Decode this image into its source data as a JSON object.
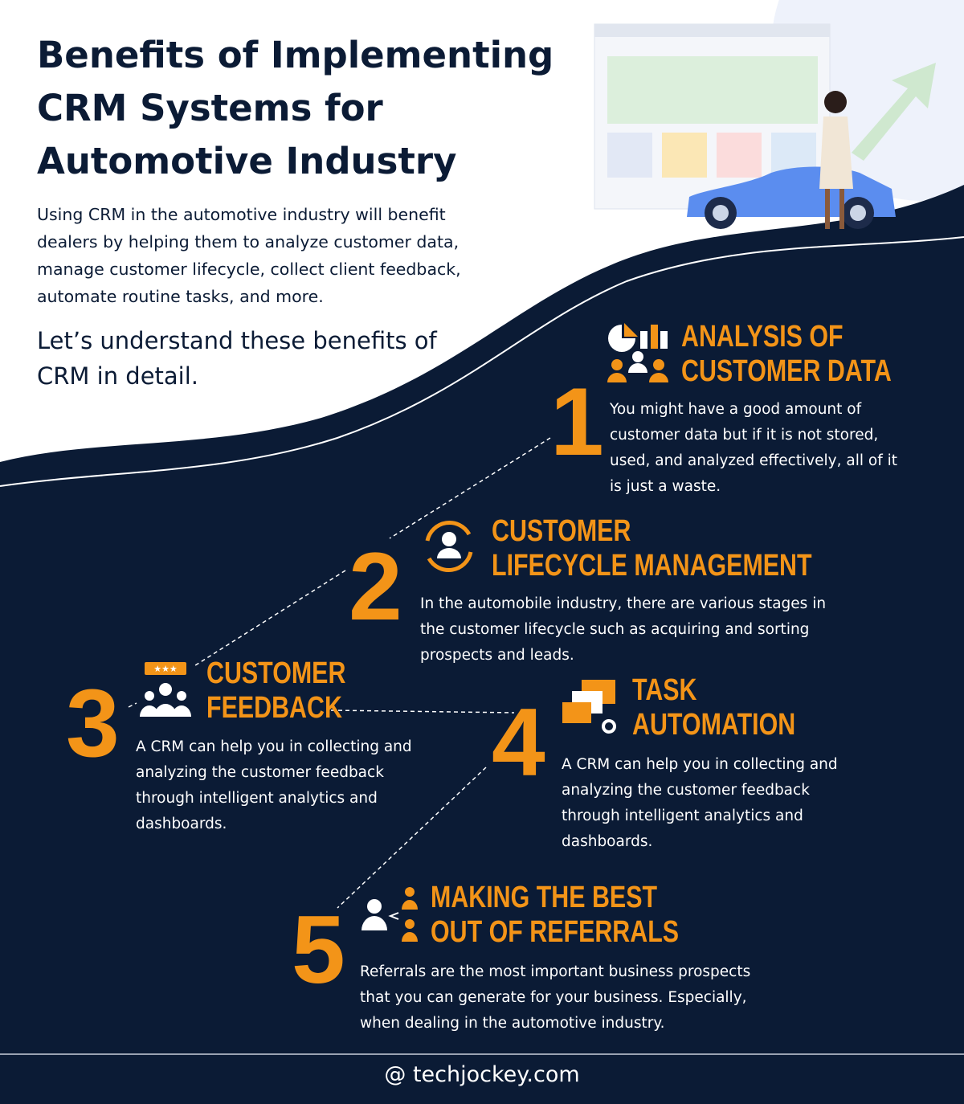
{
  "title": "Benefits of Implementing CRM Systems for Automotive Industry",
  "intro": "Using CRM in the automotive industry will benefit dealers by helping them to analyze customer data, manage customer lifecycle, collect client feedback, automate routine tasks, and more.",
  "lets": "Let’s understand these benefits of CRM in detail.",
  "colors": {
    "navy": "#0b1b35",
    "orange": "#f39418"
  },
  "benefits": [
    {
      "num": "1",
      "line1": "ANALYSIS OF",
      "line2": "CUSTOMER DATA",
      "icon": "analytics-people-icon",
      "text": "You might have a good amount of customer data but if it is not stored, used, and analyzed effectively, all of it is just a waste."
    },
    {
      "num": "2",
      "line1": "CUSTOMER",
      "line2": "LIFECYCLE MANAGEMENT",
      "icon": "customer-cycle-icon",
      "text": "In the automobile industry, there are various stages in the customer lifecycle such as acquiring and sorting prospects and leads."
    },
    {
      "num": "3",
      "line1": "CUSTOMER",
      "line2": "FEEDBACK",
      "icon": "feedback-group-icon",
      "text": "A CRM can help you in collecting and analyzing the customer feedback through intelligent analytics and dashboards."
    },
    {
      "num": "4",
      "line1": "TASK",
      "line2": "AUTOMATION",
      "icon": "automation-windows-icon",
      "text": "A CRM can help you in collecting and analyzing the customer feedback through intelligent analytics and dashboards."
    },
    {
      "num": "5",
      "line1": "MAKING THE BEST",
      "line2": "OUT OF REFERRALS",
      "icon": "referral-people-icon",
      "text": "Referrals are the most important business prospects that you can generate for your business. Especially, when dealing in the automotive industry."
    }
  ],
  "footer": {
    "icon": "at-icon",
    "site": "techjockey.com"
  }
}
